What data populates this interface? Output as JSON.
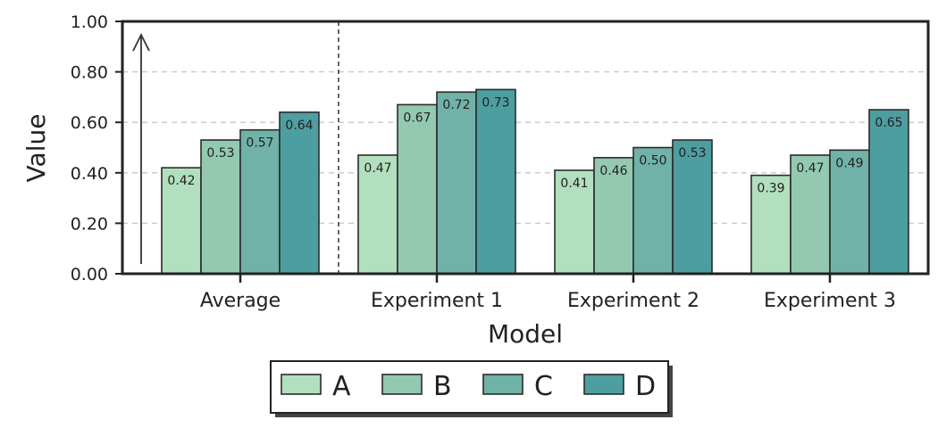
{
  "chart_data": {
    "type": "bar",
    "categories": [
      "Average",
      "Experiment 1",
      "Experiment 2",
      "Experiment 3"
    ],
    "series": [
      {
        "name": "A",
        "values": [
          0.42,
          0.47,
          0.41,
          0.39
        ],
        "labels": [
          "0.42",
          "0.47",
          "0.41",
          "0.39"
        ]
      },
      {
        "name": "B",
        "values": [
          0.53,
          0.67,
          0.46,
          0.47
        ],
        "labels": [
          "0.53",
          "0.67",
          "0.46",
          "0.47"
        ]
      },
      {
        "name": "C",
        "values": [
          0.57,
          0.72,
          0.5,
          0.49
        ],
        "labels": [
          "0.57",
          "0.72",
          "0.50",
          "0.49"
        ]
      },
      {
        "name": "D",
        "values": [
          0.64,
          0.73,
          0.53,
          0.65
        ],
        "labels": [
          "0.64",
          "0.73",
          "0.53",
          "0.65"
        ]
      }
    ],
    "colors": [
      "#b2dfbd",
      "#93c9b1",
      "#70b2a7",
      "#4d9ea0"
    ],
    "xlabel": "Model",
    "ylabel": "Value",
    "ylim": [
      0,
      1
    ],
    "yticks": [
      0,
      0.2,
      0.4,
      0.6,
      0.8,
      1.0
    ],
    "ytick_labels": [
      "0.00",
      "0.20",
      "0.40",
      "0.60",
      "0.80",
      "1.00"
    ],
    "grid": "horizontal dashed",
    "separator": "dashed vertical line after first group",
    "arrow": "upward arrow on left",
    "legend_position": "bottom-center"
  }
}
